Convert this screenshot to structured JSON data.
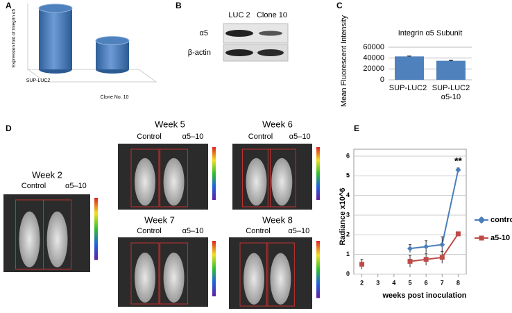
{
  "panels": {
    "letters": [
      "A",
      "B",
      "C",
      "D",
      "E"
    ],
    "B": {
      "lanes": [
        "LUC 2",
        "Clone 10"
      ],
      "rows": [
        "α5",
        "β-actin"
      ]
    },
    "D": [
      {
        "week": "Week 2",
        "groups": [
          "Control",
          "α5–10"
        ]
      },
      {
        "week": "Week 5",
        "groups": [
          "Control",
          "α5–10"
        ]
      },
      {
        "week": "Week 6",
        "groups": [
          "Control",
          "α5–10"
        ]
      },
      {
        "week": "Week 7",
        "groups": [
          "Control",
          "α5–10"
        ]
      },
      {
        "week": "Week 8",
        "groups": [
          "Control",
          "α5–10"
        ]
      }
    ]
  },
  "chart_data": [
    {
      "type": "bar3d",
      "ylabel": "Expression fold of Integrin α5",
      "categories": [
        "SUP-LUC2",
        "Clone No. 10"
      ],
      "values": [
        1,
        0.47
      ],
      "ylim": [
        0,
        1.1
      ],
      "color": "#4f81bd"
    },
    {
      "type": "bar",
      "title": "Integrin α5 Subunit",
      "ylabel": "Mean Fluorescent Intensity",
      "categories": [
        "SUP-LUC2",
        "SUP-LUC2 α5-10"
      ],
      "values": [
        43000,
        35000
      ],
      "errors": [
        700,
        800
      ],
      "ylim": [
        0,
        60000
      ],
      "yticks": [
        0,
        20000,
        40000,
        60000
      ],
      "grid": true,
      "color": "#4f81bd"
    },
    {
      "type": "line",
      "xlabel": "weeks post inoculation",
      "ylabel": "Radiance x10^6",
      "x": [
        2,
        3,
        4,
        5,
        6,
        7,
        8
      ],
      "xlim": [
        1.5,
        8.5
      ],
      "xticks": [
        2,
        3,
        4,
        5,
        6,
        7,
        8
      ],
      "ylim": [
        0,
        6
      ],
      "yticks": [
        0,
        1,
        2,
        3,
        4,
        5,
        6
      ],
      "grid": true,
      "legend": "right",
      "annotation": "**",
      "series": [
        {
          "name": "control",
          "color": "#4a7ebb",
          "marker": "diamond",
          "values": [
            null,
            null,
            null,
            1.3,
            1.4,
            1.5,
            5.3
          ],
          "errors": [
            null,
            null,
            null,
            0.2,
            0.3,
            0.4,
            0.1
          ]
        },
        {
          "name": "a5-10",
          "color": "#be4b48",
          "marker": "square",
          "values": [
            0.5,
            null,
            null,
            0.65,
            0.75,
            0.85,
            2.05
          ],
          "errors": [
            0.25,
            null,
            null,
            0.3,
            0.3,
            0.3,
            0.1
          ]
        }
      ]
    }
  ]
}
